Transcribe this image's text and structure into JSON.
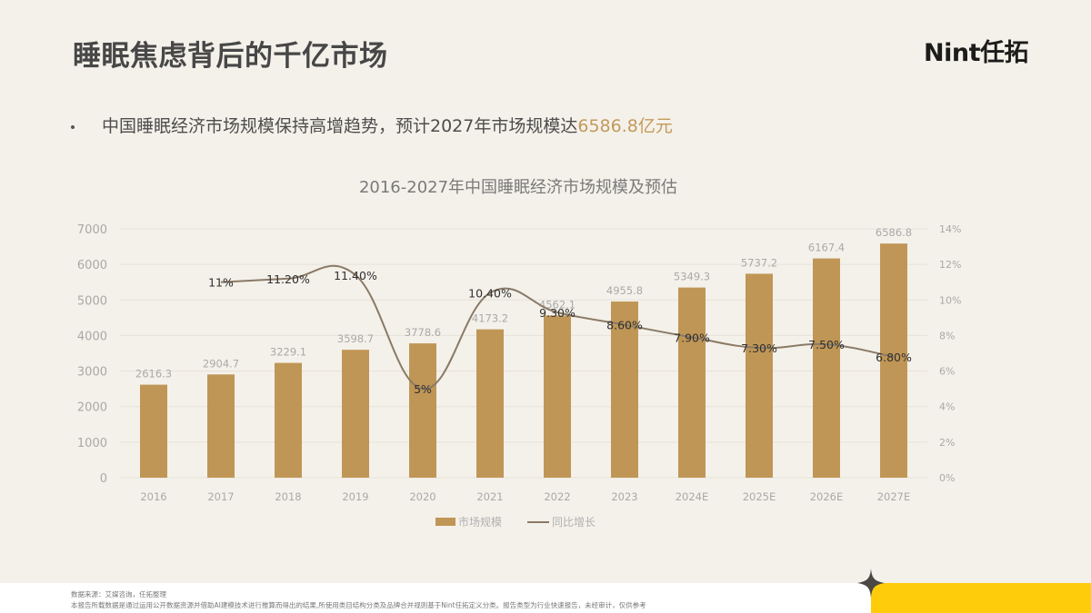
{
  "header": {
    "title": "睡眠焦虑背后的千亿市场",
    "logo": "Nint任拓"
  },
  "bullet": {
    "text": "中国睡眠经济市场规模保持高增趋势，预计2027年市场规模达",
    "highlight": "6586.8亿元"
  },
  "colors": {
    "bar": "#c09656",
    "line": "#8a7a66",
    "highlight": "#c39a5c",
    "accent_yellow": "#fecc0a",
    "background": "#f4f1ea"
  },
  "chart_data": {
    "type": "bar",
    "title": "2016-2027年中国睡眠经济市场规模及预估",
    "categories": [
      "2016",
      "2017",
      "2018",
      "2019",
      "2020",
      "2021",
      "2022",
      "2023",
      "2024E",
      "2025E",
      "2026E",
      "2027E"
    ],
    "series": [
      {
        "name": "市场规模",
        "type": "bar",
        "axis": "left",
        "values": [
          2616.3,
          2904.7,
          3229.1,
          3598.7,
          3778.6,
          4173.2,
          4562.1,
          4955.8,
          5349.3,
          5737.2,
          6167.4,
          6586.8
        ],
        "labels": [
          "2616.3",
          "2904.7",
          "3229.1",
          "3598.7",
          "3778.6",
          "4173.2",
          "4562.1",
          "4955.8",
          "5349.3",
          "5737.2",
          "6167.4",
          "6586.8"
        ]
      },
      {
        "name": "同比增长",
        "type": "line",
        "axis": "right",
        "values": [
          null,
          11.0,
          11.2,
          11.4,
          5.0,
          10.4,
          9.3,
          8.6,
          7.9,
          7.3,
          7.5,
          6.8
        ],
        "labels": [
          "",
          "11%",
          "11.20%",
          "11.40%",
          "5%",
          "10.40%",
          "9.30%",
          "8.60%",
          "7.90%",
          "7.30%",
          "7.50%",
          "6.80%"
        ]
      }
    ],
    "y_left": {
      "ticks": [
        "0",
        "1000",
        "2000",
        "3000",
        "4000",
        "5000",
        "6000",
        "7000"
      ],
      "ylim": [
        0,
        7000
      ]
    },
    "y_right": {
      "ticks": [
        "0%",
        "2%",
        "4%",
        "6%",
        "8%",
        "10%",
        "12%",
        "14%"
      ],
      "ylim": [
        0,
        14
      ]
    },
    "xlabel": "",
    "ylabel": "",
    "grid": true,
    "legend": {
      "position": "bottom",
      "items": [
        "市场规模",
        "同比增长"
      ]
    }
  },
  "footer": {
    "source": "数据来源：艾媒咨询，任拓整理",
    "disclaimer": "本报告所载数据是通过运用公开数据资源并借助AI建模技术进行推算而得出的结果,所使用类目结构分类及品牌合并规则基于Nint任拓定义分类。报告类型为行业快速报告，未经审计，仅供参考"
  }
}
